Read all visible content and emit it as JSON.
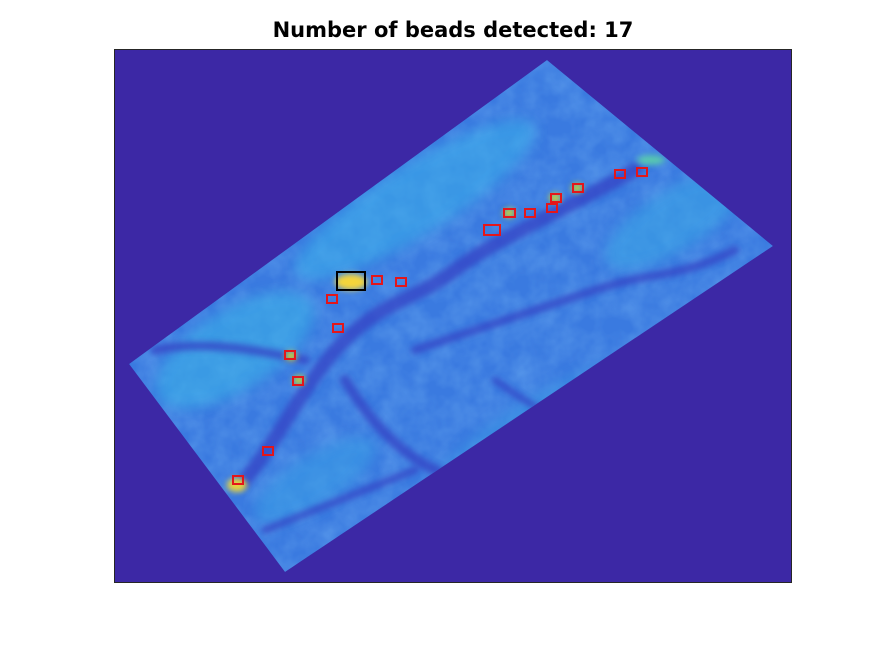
{
  "figure": {
    "title": "Number of beads detected: 17"
  },
  "image": {
    "description_colors": {
      "background": "#3c28a5",
      "tissue_base": "#3a7fe0",
      "tissue_light": "#3aa8e8",
      "tissue_dark": "#3546c8",
      "bead_bright": "#f5d53a"
    }
  },
  "detections": {
    "count": 17,
    "box_color": "#e4161a",
    "highlight_box_color": "#000000"
  }
}
